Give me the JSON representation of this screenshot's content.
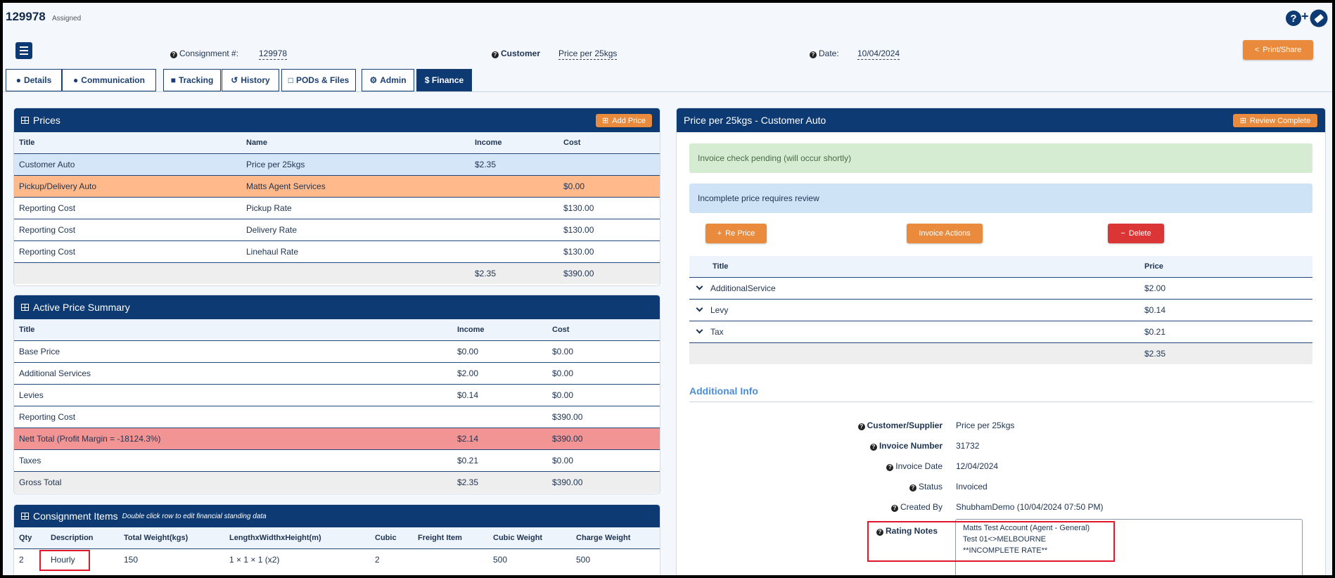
{
  "header": {
    "consignment_id": "129978",
    "status": "Assigned",
    "consignment_label": "Consignment #:",
    "consignment_value": "129978",
    "customer_label": "Customer",
    "customer_value": "Price per 25kgs",
    "date_label": "Date:",
    "date_value": "10/04/2024",
    "print_label": "Print/Share"
  },
  "tabs": [
    {
      "label": "Details"
    },
    {
      "label": "Communication"
    },
    {
      "label": "Tracking"
    },
    {
      "label": "History"
    },
    {
      "label": "PODs & Files"
    },
    {
      "label": "Admin"
    },
    {
      "label": "$ Finance"
    }
  ],
  "prices": {
    "title": "Prices",
    "add_label": "Add Price",
    "columns": [
      "Title",
      "Name",
      "Income",
      "Cost"
    ],
    "rows": [
      [
        "Customer Auto",
        "Price per 25kgs",
        "$2.35",
        ""
      ],
      [
        "Pickup/Delivery Auto",
        "Matts Agent Services",
        "",
        "$0.00"
      ],
      [
        "Reporting Cost",
        "Pickup Rate",
        "",
        "$130.00"
      ],
      [
        "Reporting Cost",
        "Delivery Rate",
        "",
        "$130.00"
      ],
      [
        "Reporting Cost",
        "Linehaul Rate",
        "",
        "$130.00"
      ],
      [
        "",
        "",
        "$2.35",
        "$390.00"
      ]
    ]
  },
  "summary": {
    "title": "Active Price Summary",
    "columns": [
      "Title",
      "Income",
      "Cost"
    ],
    "rows": [
      [
        "Base Price",
        "$0.00",
        "$0.00"
      ],
      [
        "Additional Services",
        "$2.00",
        "$0.00"
      ],
      [
        "Levies",
        "$0.14",
        "$0.00"
      ],
      [
        "Reporting Cost",
        "",
        "$390.00"
      ],
      [
        "Nett Total (Profit Margin = -18124.3%)",
        "$2.14",
        "$390.00"
      ],
      [
        "Taxes",
        "$0.21",
        "$0.00"
      ],
      [
        "Gross Total",
        "$2.35",
        "$390.00"
      ]
    ]
  },
  "items": {
    "title": "Consignment Items",
    "subtitle": "Double click row to edit financial standing data",
    "columns": [
      "Qty",
      "Description",
      "Total Weight(kgs)",
      "LengthxWidthxHeight(m)",
      "Cubic",
      "Freight Item",
      "Cubic Weight",
      "Charge Weight"
    ],
    "rows": [
      [
        "2",
        "Hourly",
        "150",
        "1 × 1 × 1 (x2)",
        "2",
        "",
        "500",
        "500"
      ]
    ]
  },
  "right": {
    "title": "Price per 25kgs - Customer Auto",
    "review_label": "Review Complete",
    "alert_green": "Invoice check pending (will occur shortly)",
    "alert_blue": "Incomplete price requires review",
    "reprice_label": "Re Price",
    "invoice_actions_label": "Invoice Actions",
    "delete_label": "Delete",
    "columns": [
      "Title",
      "Price"
    ],
    "rows": [
      [
        "AdditionalService",
        "$2.00"
      ],
      [
        "Levy",
        "$0.14"
      ],
      [
        "Tax",
        "$0.21"
      ],
      [
        "",
        "$2.35"
      ]
    ],
    "additional_info": "Additional Info",
    "info": [
      [
        "Customer/Supplier",
        "Price per 25kgs"
      ],
      [
        "Invoice Number",
        "31732"
      ],
      [
        "Invoice Date",
        "12/04/2024"
      ],
      [
        "Status",
        "Invoiced"
      ],
      [
        "Created By",
        "ShubhamDemo (10/04/2024 07:50 PM)"
      ]
    ],
    "rating_label": "Rating Notes",
    "rating_lines": [
      "Matts Test Account (Agent - General)",
      "Test 01<>MELBOURNE",
      "**INCOMPLETE RATE**"
    ]
  },
  "colors": {
    "navy": "#0d3a73",
    "orange": "#e98a3c",
    "red": "#dc3535",
    "highlight": "#e0162b"
  }
}
